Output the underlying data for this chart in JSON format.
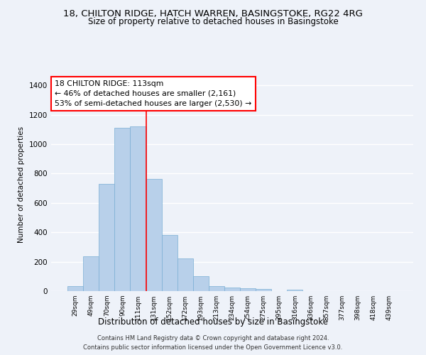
{
  "title1": "18, CHILTON RIDGE, HATCH WARREN, BASINGSTOKE, RG22 4RG",
  "title2": "Size of property relative to detached houses in Basingstoke",
  "xlabel": "Distribution of detached houses by size in Basingstoke",
  "ylabel": "Number of detached properties",
  "bar_labels": [
    "29sqm",
    "49sqm",
    "70sqm",
    "90sqm",
    "111sqm",
    "131sqm",
    "152sqm",
    "172sqm",
    "193sqm",
    "213sqm",
    "234sqm",
    "254sqm",
    "275sqm",
    "295sqm",
    "316sqm",
    "336sqm",
    "357sqm",
    "377sqm",
    "398sqm",
    "418sqm",
    "439sqm"
  ],
  "bar_values": [
    35,
    238,
    728,
    1110,
    1120,
    762,
    380,
    222,
    100,
    32,
    22,
    18,
    14,
    0,
    12,
    0,
    0,
    0,
    0,
    0,
    0
  ],
  "bar_color": "#b8d0ea",
  "bar_edge_color": "#7aafd4",
  "red_line_x": 4.5,
  "annotation_text": "18 CHILTON RIDGE: 113sqm\n← 46% of detached houses are smaller (2,161)\n53% of semi-detached houses are larger (2,530) →",
  "ylim": [
    0,
    1450
  ],
  "yticks": [
    0,
    200,
    400,
    600,
    800,
    1000,
    1200,
    1400
  ],
  "footer1": "Contains HM Land Registry data © Crown copyright and database right 2024.",
  "footer2": "Contains public sector information licensed under the Open Government Licence v3.0.",
  "background_color": "#eef2f9",
  "grid_color": "#ffffff"
}
